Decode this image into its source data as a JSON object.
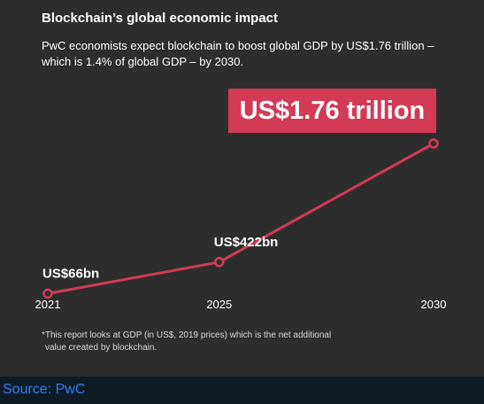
{
  "title": "Blockchain’s global economic impact",
  "subtitle_line1": "PwC economists expect blockchain to boost global GDP by US$1.76 trillion –",
  "subtitle_line2": "which is 1.4% of global GDP – by 2030.",
  "highlight": "US$1.76 trillion",
  "footnote_line1": "*This report looks at GDP (in US$, 2019 prices) which is the net additional",
  "footnote_line2": "value created by blockchain.",
  "source": "Source: PwC",
  "colors": {
    "line": "#d23a55",
    "card_background": "#2d2d2d",
    "page_background": "#0e1a24",
    "source_text": "#2f7df6"
  },
  "chart_data": {
    "type": "line",
    "categories": [
      "2021",
      "2025",
      "2030"
    ],
    "values": [
      66,
      422,
      1760
    ],
    "value_unit": "US$ billions",
    "data_labels": [
      "US$66bn",
      "US$422bn",
      ""
    ],
    "ylim": [
      0,
      1760
    ],
    "grid": false,
    "legend": false
  }
}
